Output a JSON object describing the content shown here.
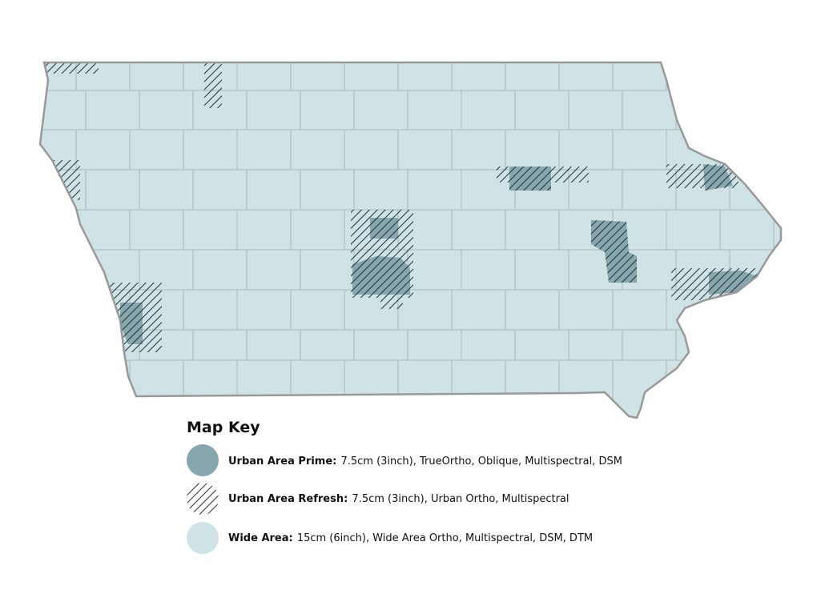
{
  "legend": {
    "title": "Map Key",
    "items": [
      {
        "label": "Urban Area Prime:",
        "description": "7.5cm (3inch), TrueOrtho, Oblique, Multispectral, DSM"
      },
      {
        "label": "Urban Area Refresh:",
        "description": "7.5cm (3inch), Urban Ortho, Multispectral"
      },
      {
        "label": "Wide Area:",
        "description": "15cm (6inch), Wide Area Ortho, Multispectral, DSM, DTM"
      }
    ]
  }
}
